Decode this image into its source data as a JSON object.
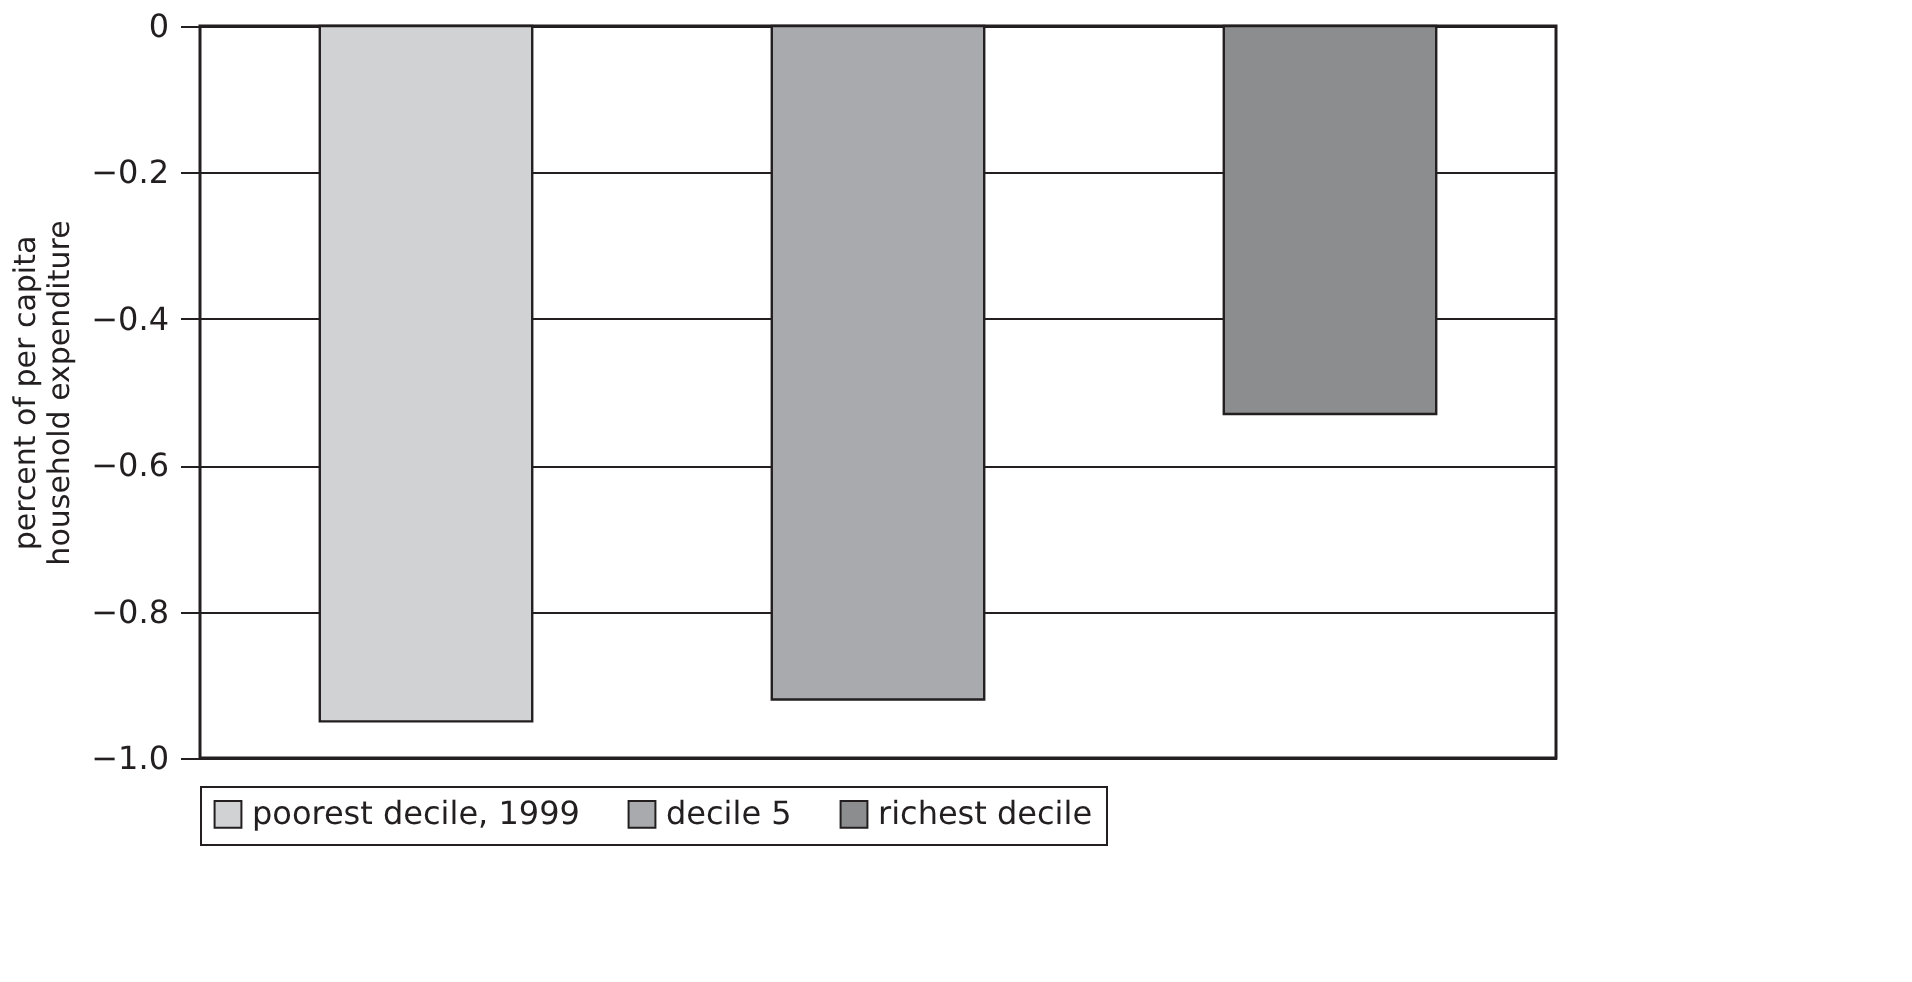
{
  "chart_data": {
    "type": "bar",
    "ylabel": "percent of per capita\nhousehold expenditure",
    "categories": [
      null,
      null,
      null
    ],
    "series": [
      {
        "name": "poorest decile, 1999",
        "color": "#d1d2d4",
        "values": [
          -0.95,
          null,
          null
        ]
      },
      {
        "name": "decile 5",
        "color": "#a9aaad",
        "values": [
          null,
          -0.92,
          null
        ]
      },
      {
        "name": "richest decile",
        "color": "#8c8d8f",
        "values": [
          null,
          null,
          -0.53
        ]
      }
    ],
    "ylim": [
      -1.0,
      0
    ],
    "yticks": [
      {
        "value": -1.0,
        "label": "−1.0"
      },
      {
        "value": -0.8,
        "label": "−0.8"
      },
      {
        "value": -0.6,
        "label": "−0.6"
      },
      {
        "value": -0.4,
        "label": "−0.4"
      },
      {
        "value": -0.2,
        "label": "−0.2"
      },
      0
    ],
    "grid": "y",
    "legend": "bottom"
  }
}
